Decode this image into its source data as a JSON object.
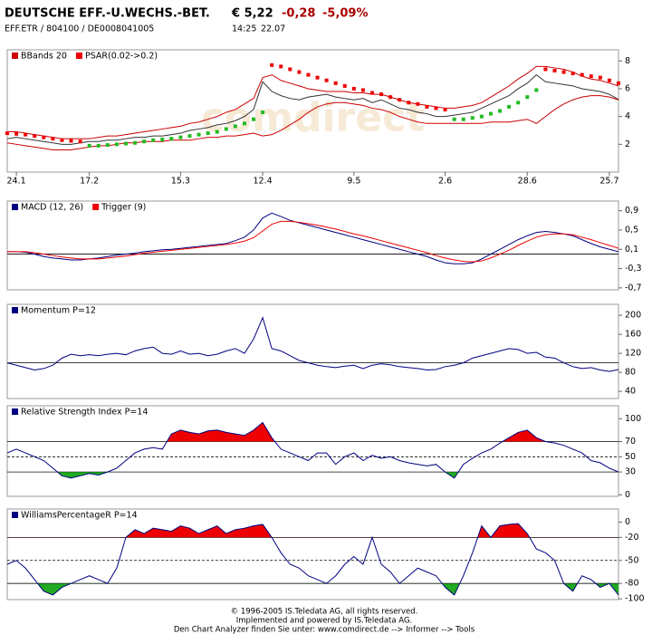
{
  "header": {
    "name": "DEUTSCHE EFF.-U.WECHS.-BET.",
    "price": "€ 5,22",
    "change": "-0,28",
    "change_pct": "-5,09%",
    "info": "EFF.ETR  /  804100  /  DE0008041005",
    "time": "14:25",
    "date": "22.07"
  },
  "chart_data": [
    {
      "type": "line",
      "watermark": "comdirect",
      "xlim": [
        0,
        67
      ],
      "ylim": [
        0,
        8.8
      ],
      "yticks": [
        2,
        4,
        6,
        8
      ],
      "xticks": [
        {
          "value": 1,
          "label": "24.1"
        },
        {
          "value": 9,
          "label": "17.2"
        },
        {
          "value": 19,
          "label": "15.3"
        },
        {
          "value": 28,
          "label": "12.4"
        },
        {
          "value": 38,
          "label": "9.5"
        },
        {
          "value": 48,
          "label": "2.6"
        },
        {
          "value": 57,
          "label": "28.6"
        },
        {
          "value": 66,
          "label": "25.7"
        }
      ],
      "series": [
        {
          "color": "#333333",
          "values": [
            2.4,
            2.5,
            2.4,
            2.3,
            2.2,
            2.1,
            2.0,
            2.0,
            2.1,
            2.2,
            2.2,
            2.3,
            2.3,
            2.4,
            2.5,
            2.5,
            2.6,
            2.6,
            2.7,
            2.8,
            3.0,
            3.1,
            3.2,
            3.4,
            3.5,
            3.7,
            4.0,
            4.5,
            6.5,
            5.8,
            5.5,
            5.3,
            5.2,
            5.4,
            5.5,
            5.6,
            5.4,
            5.3,
            5.2,
            5.3,
            5.0,
            5.2,
            4.9,
            4.6,
            4.5,
            4.3,
            4.2,
            4.0,
            4.0,
            4.1,
            4.2,
            4.3,
            4.6,
            4.9,
            5.2,
            5.5,
            6.0,
            6.4,
            7.0,
            6.5,
            6.4,
            6.3,
            6.2,
            6.0,
            5.9,
            5.8,
            5.6,
            5.22
          ]
        },
        {
          "name": "BBands 20",
          "color": "#cc0000",
          "values": [
            2.9,
            2.9,
            2.8,
            2.7,
            2.6,
            2.5,
            2.4,
            2.4,
            2.4,
            2.4,
            2.5,
            2.6,
            2.6,
            2.7,
            2.8,
            2.9,
            3.0,
            3.1,
            3.2,
            3.3,
            3.5,
            3.6,
            3.8,
            4.0,
            4.3,
            4.5,
            4.9,
            5.3,
            6.8,
            7.0,
            6.6,
            6.4,
            6.2,
            6.0,
            5.9,
            5.8,
            5.8,
            5.8,
            5.7,
            5.7,
            5.6,
            5.6,
            5.4,
            5.2,
            5.0,
            4.9,
            4.8,
            4.7,
            4.6,
            4.6,
            4.7,
            4.8,
            5.0,
            5.4,
            5.8,
            6.2,
            6.7,
            7.1,
            7.6,
            7.6,
            7.5,
            7.4,
            7.2,
            6.9,
            6.7,
            6.6,
            6.4,
            6.2
          ],
          "lower": [
            2.1,
            2.0,
            1.9,
            1.8,
            1.7,
            1.6,
            1.6,
            1.6,
            1.7,
            1.8,
            1.9,
            1.9,
            2.0,
            2.1,
            2.1,
            2.2,
            2.2,
            2.2,
            2.3,
            2.3,
            2.3,
            2.4,
            2.5,
            2.5,
            2.6,
            2.6,
            2.7,
            2.8,
            2.6,
            2.7,
            3.0,
            3.4,
            3.8,
            4.3,
            4.7,
            4.9,
            5.0,
            5.0,
            4.9,
            4.8,
            4.6,
            4.5,
            4.3,
            4.0,
            3.8,
            3.6,
            3.5,
            3.5,
            3.5,
            3.5,
            3.5,
            3.5,
            3.5,
            3.6,
            3.6,
            3.6,
            3.7,
            3.8,
            3.5,
            4.0,
            4.5,
            4.9,
            5.2,
            5.4,
            5.5,
            5.5,
            5.4,
            5.2
          ]
        },
        {
          "name": "PSAR(0.02->0.2)",
          "color": "#ee0000",
          "below_color": "#22bb22",
          "style": "markers",
          "values": [
            2.8,
            2.75,
            2.7,
            2.6,
            2.5,
            2.4,
            2.3,
            2.25,
            2.2,
            1.9,
            1.9,
            1.95,
            2.0,
            2.05,
            2.1,
            2.2,
            2.3,
            2.35,
            2.4,
            2.5,
            2.6,
            2.7,
            2.8,
            2.9,
            3.1,
            3.3,
            3.5,
            3.8,
            4.3,
            7.7,
            7.6,
            7.4,
            7.2,
            7.0,
            6.8,
            6.6,
            6.4,
            6.2,
            6.0,
            5.9,
            5.7,
            5.6,
            5.4,
            5.2,
            5.0,
            4.9,
            4.7,
            4.6,
            4.5,
            3.8,
            3.8,
            3.9,
            4.0,
            4.2,
            4.4,
            4.7,
            5.0,
            5.4,
            5.9,
            7.4,
            7.3,
            7.2,
            7.1,
            7.0,
            6.9,
            6.8,
            6.6,
            6.4
          ]
        }
      ]
    },
    {
      "type": "line",
      "xlim": [
        0,
        67
      ],
      "ylim": [
        -0.74,
        1.1
      ],
      "ref_lines": [
        {
          "value": 0
        }
      ],
      "yticks": [
        {
          "value": 0.9,
          "label": "0,9"
        },
        {
          "value": 0.5,
          "label": "0,5"
        },
        {
          "value": 0.1,
          "label": "0,1"
        },
        {
          "value": -0.3,
          "label": "-0,3"
        },
        {
          "value": -0.7,
          "label": "-0,7"
        }
      ],
      "series": [
        {
          "name": "MACD (12, 26)",
          "color": "#000080",
          "values": [
            0.05,
            0.05,
            0.04,
            0.0,
            -0.05,
            -0.08,
            -0.1,
            -0.12,
            -0.12,
            -0.1,
            -0.08,
            -0.05,
            -0.02,
            0.0,
            0.02,
            0.05,
            0.07,
            0.09,
            0.1,
            0.12,
            0.14,
            0.16,
            0.18,
            0.2,
            0.22,
            0.28,
            0.35,
            0.5,
            0.75,
            0.85,
            0.78,
            0.7,
            0.65,
            0.6,
            0.55,
            0.5,
            0.45,
            0.4,
            0.35,
            0.3,
            0.25,
            0.2,
            0.15,
            0.1,
            0.05,
            0.0,
            -0.05,
            -0.12,
            -0.18,
            -0.2,
            -0.2,
            -0.18,
            -0.1,
            0.0,
            0.1,
            0.2,
            0.3,
            0.38,
            0.45,
            0.47,
            0.45,
            0.42,
            0.38,
            0.3,
            0.22,
            0.15,
            0.1,
            0.05
          ]
        },
        {
          "name": "Trigger (9)",
          "color": "#ee0000",
          "values": [
            0.05,
            0.05,
            0.05,
            0.03,
            0.0,
            -0.03,
            -0.06,
            -0.08,
            -0.1,
            -0.1,
            -0.1,
            -0.08,
            -0.06,
            -0.04,
            -0.01,
            0.02,
            0.04,
            0.06,
            0.08,
            0.1,
            0.12,
            0.14,
            0.16,
            0.18,
            0.2,
            0.23,
            0.27,
            0.34,
            0.48,
            0.62,
            0.68,
            0.68,
            0.66,
            0.63,
            0.6,
            0.56,
            0.52,
            0.47,
            0.42,
            0.38,
            0.33,
            0.28,
            0.23,
            0.18,
            0.13,
            0.08,
            0.03,
            -0.03,
            -0.08,
            -0.12,
            -0.15,
            -0.16,
            -0.14,
            -0.08,
            0.0,
            0.08,
            0.18,
            0.27,
            0.35,
            0.4,
            0.42,
            0.42,
            0.4,
            0.35,
            0.3,
            0.24,
            0.18,
            0.12
          ]
        }
      ]
    },
    {
      "type": "line",
      "xlim": [
        0,
        67
      ],
      "ylim": [
        25,
        223
      ],
      "yticks": [
        200,
        160,
        120,
        80,
        40
      ],
      "ref_lines": [
        {
          "value": 100
        }
      ],
      "series": [
        {
          "name": "Momentum P=12",
          "color": "#000080",
          "values": [
            100,
            95,
            90,
            85,
            88,
            95,
            110,
            118,
            115,
            117,
            115,
            118,
            120,
            117,
            125,
            130,
            133,
            120,
            118,
            125,
            118,
            120,
            115,
            118,
            125,
            130,
            120,
            150,
            195,
            130,
            125,
            115,
            105,
            100,
            95,
            92,
            90,
            93,
            95,
            88,
            95,
            98,
            96,
            92,
            90,
            88,
            85,
            86,
            92,
            95,
            100,
            110,
            115,
            120,
            125,
            130,
            128,
            120,
            122,
            112,
            110,
            100,
            92,
            88,
            90,
            85,
            82,
            86
          ]
        }
      ]
    },
    {
      "type": "line",
      "xlim": [
        0,
        67
      ],
      "ylim": [
        -2,
        117
      ],
      "yticks": [
        100,
        70,
        50,
        30,
        0
      ],
      "ref_lines": [
        {
          "value": 70
        },
        {
          "value": 50,
          "dash": true
        },
        {
          "value": 30
        }
      ],
      "fill_above": {
        "level": 70,
        "color": "#ee0000"
      },
      "fill_below": {
        "level": 30,
        "color": "#22aa22"
      },
      "series": [
        {
          "name": "Relative Strength Index P=14",
          "color": "#000080",
          "values": [
            55,
            60,
            55,
            50,
            45,
            35,
            25,
            22,
            25,
            28,
            26,
            30,
            35,
            45,
            55,
            60,
            62,
            60,
            80,
            85,
            82,
            80,
            84,
            85,
            82,
            80,
            78,
            85,
            95,
            75,
            60,
            55,
            50,
            45,
            55,
            55,
            40,
            50,
            55,
            45,
            52,
            48,
            50,
            45,
            42,
            40,
            38,
            40,
            30,
            22,
            40,
            48,
            55,
            60,
            68,
            75,
            82,
            85,
            75,
            70,
            68,
            65,
            60,
            55,
            45,
            42,
            35,
            30
          ]
        }
      ]
    },
    {
      "type": "line",
      "xlim": [
        0,
        67
      ],
      "ylim": [
        -101,
        17
      ],
      "yticks": [
        0,
        -20,
        -50,
        -80,
        -100
      ],
      "ref_lines": [
        {
          "value": -20
        },
        {
          "value": -50,
          "dash": true
        },
        {
          "value": -80
        }
      ],
      "fill_above": {
        "level": -20,
        "color": "#ee0000"
      },
      "fill_below": {
        "level": -80,
        "color": "#22aa22"
      },
      "series": [
        {
          "name": "WilliamsPercentageR P=14",
          "color": "#000080",
          "values": [
            -55,
            -50,
            -60,
            -75,
            -90,
            -95,
            -85,
            -80,
            -75,
            -70,
            -75,
            -80,
            -60,
            -20,
            -10,
            -15,
            -8,
            -10,
            -12,
            -5,
            -8,
            -15,
            -10,
            -5,
            -15,
            -10,
            -8,
            -5,
            -3,
            -20,
            -40,
            -55,
            -60,
            -70,
            -75,
            -80,
            -70,
            -55,
            -45,
            -55,
            -20,
            -55,
            -65,
            -80,
            -70,
            -60,
            -65,
            -70,
            -85,
            -95,
            -70,
            -40,
            -5,
            -20,
            -5,
            -3,
            -2,
            -15,
            -35,
            -40,
            -50,
            -80,
            -90,
            -70,
            -75,
            -85,
            -80,
            -95
          ]
        }
      ]
    }
  ],
  "footer": [
    "© 1996-2005 IS.Teledata AG, all rights reserved.",
    "Implemented and powered by IS.Teledata AG.",
    "Den Chart Analyzer finden Sie unter: www.comdirect.de --> Informer --> Tools"
  ]
}
